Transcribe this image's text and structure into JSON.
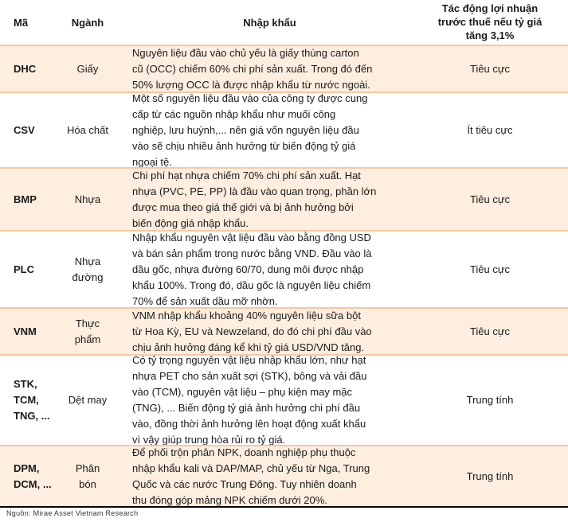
{
  "header": {
    "code": "Mã",
    "sector": "Ngành",
    "imports": "Nhập khẩu",
    "impact_lines": [
      "Tác động lợi nhuận",
      "trước thuế nếu tỷ giá",
      "tăng 3,1%"
    ]
  },
  "rows": [
    {
      "code": [
        "DHC"
      ],
      "sector": [
        "Giấy"
      ],
      "desc": [
        "Nguyên liệu đầu vào chủ yếu là giấy thùng carton",
        "cũ (OCC) chiếm 60% chi phí sản xuất. Trong đó đến",
        "50% lượng OCC là được nhập khẩu từ nước ngoài."
      ],
      "impact": "Tiêu cực"
    },
    {
      "code": [
        "CSV"
      ],
      "sector": [
        "Hóa chất"
      ],
      "desc": [
        "Một số nguyên liệu đầu vào của công ty được cung",
        "cấp từ các nguồn nhập khẩu như muối công",
        "nghiệp, lưu huỳnh,... nên giá vốn nguyên liệu đầu",
        "vào sẽ chịu nhiều ảnh hưởng từ biến động tỷ giá",
        "ngoại tệ."
      ],
      "impact": "Ít tiêu cực"
    },
    {
      "code": [
        "BMP"
      ],
      "sector": [
        "Nhựa"
      ],
      "desc": [
        "Chi phí hạt nhựa chiếm 70% chi phí sản xuất. Hạt",
        "nhựa (PVC, PE, PP) là đầu vào quan trọng, phần lớn",
        "được mua theo giá thế giới và bị ảnh hưởng bởi",
        "biến động giá nhập khẩu."
      ],
      "impact": "Tiêu cực"
    },
    {
      "code": [
        "PLC"
      ],
      "sector": [
        "Nhựa",
        "đường"
      ],
      "desc": [
        "Nhập khẩu nguyên vật liệu đầu vào bằng đồng USD",
        "và bán sản phẩm trong nước bằng VND. Đầu vào là",
        "dầu gốc, nhựa đường 60/70, dung môi được nhập",
        "khẩu 100%. Trong đó, dầu gốc là nguyên liệu chiếm",
        "70% để sản xuất dầu mỡ nhờn."
      ],
      "impact": "Tiêu cực"
    },
    {
      "code": [
        "VNM"
      ],
      "sector": [
        "Thực",
        "phẩm"
      ],
      "desc": [
        "VNM nhập khẩu khoảng 40% nguyên liệu sữa bột",
        "từ Hoa Kỳ, EU và Newzeland, do đó chi phí đầu vào",
        "chịu ảnh hưởng đáng kể khi tỷ giá USD/VND tăng."
      ],
      "impact": "Tiêu cực"
    },
    {
      "code": [
        "STK,",
        "TCM,",
        "TNG, ..."
      ],
      "sector": [
        "Dệt may"
      ],
      "desc": [
        "Có tỷ trọng nguyên vật liệu nhập khẩu lớn, như hạt",
        "nhựa PET cho sản xuất sợi (STK), bông và vải đầu",
        "vào (TCM), nguyên vật liệu – phụ kiện may mặc",
        "(TNG), ... Biến động tỷ giá ảnh hưởng chi phí đầu",
        "vào, đồng thời ảnh hưởng lên hoạt động xuất khẩu",
        "vì vậy giúp trung hòa rủi ro tỷ giá."
      ],
      "impact": "Trung tính"
    },
    {
      "code": [
        "DPM,",
        "DCM, ..."
      ],
      "sector": [
        "Phân",
        "bón"
      ],
      "desc": [
        "Để phối trộn phân NPK, doanh nghiệp phụ thuộc",
        "nhập khẩu kali và DAP/MAP, chủ yếu từ Nga, Trung",
        "Quốc và các nước Trung Đông. Tuy nhiên doanh",
        "thu đóng góp mảng NPK chiếm dưới 20%."
      ],
      "impact": "Trung tính"
    }
  ],
  "source": "Nguồn: Mirae Asset Vietnam Research",
  "colors": {
    "shade": "#fdeedf",
    "border": "#f6c9a0"
  }
}
